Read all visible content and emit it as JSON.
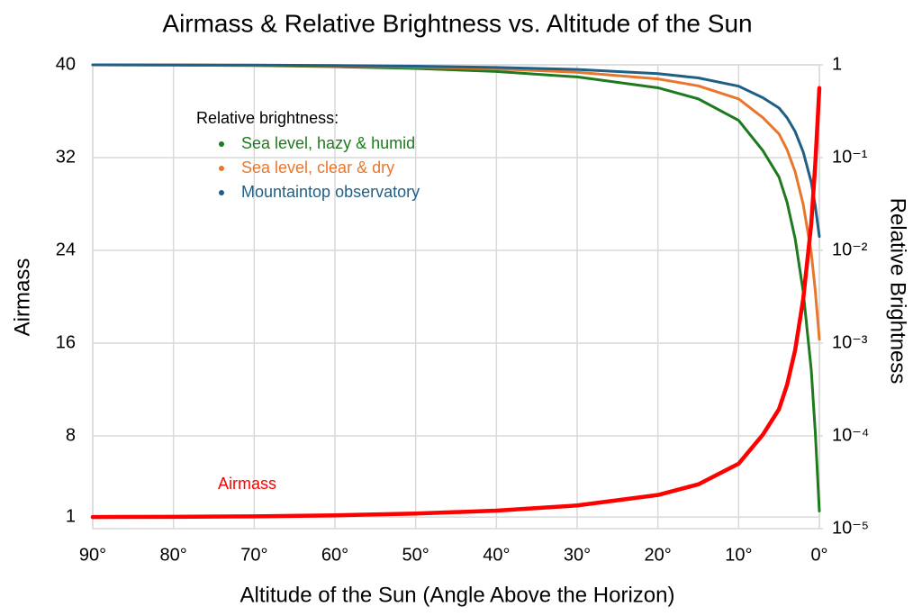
{
  "chart_data": {
    "type": "line",
    "title": "Airmass & Relative Brightness vs. Altitude of the Sun",
    "x_label": "Altitude of the Sun (Angle Above the Horizon)",
    "y_label": "Airmass",
    "y2_label": "Relative Brightness",
    "legend_title": "Relative brightness:",
    "x": [
      90,
      80,
      70,
      60,
      50,
      40,
      30,
      20,
      15,
      10,
      7,
      5,
      4,
      3,
      2,
      1,
      0.5,
      0
    ],
    "series": [
      {
        "name": "Sea level, hazy & humid",
        "color": "#1e7a1e",
        "axis": "y2",
        "values": [
          1,
          0.994,
          0.982,
          0.956,
          0.914,
          0.848,
          0.741,
          0.566,
          0.43,
          0.252,
          0.119,
          0.0618,
          0.033,
          0.0134,
          0.0036,
          0.00051,
          0.000108,
          1.55e-05
        ]
      },
      {
        "name": "Sea level, clear & dry",
        "color": "#e8772e",
        "axis": "y2",
        "values": [
          1,
          0.996,
          0.989,
          0.973,
          0.946,
          0.904,
          0.832,
          0.705,
          0.594,
          0.429,
          0.27,
          0.18,
          0.122,
          0.0705,
          0.0313,
          0.00946,
          0.00363,
          0.0011
        ]
      },
      {
        "name": "Mountaintop observatory",
        "color": "#1f5f86",
        "axis": "y2",
        "values": [
          1,
          0.998,
          0.993,
          0.983,
          0.966,
          0.939,
          0.891,
          0.804,
          0.723,
          0.589,
          0.442,
          0.343,
          0.269,
          0.191,
          0.115,
          0.0543,
          0.0299,
          0.0141
        ]
      },
      {
        "name": "Airmass",
        "color": "#ff0000",
        "values": [
          1,
          1.02,
          1.06,
          1.15,
          1.3,
          1.55,
          2.0,
          2.9,
          3.82,
          5.6,
          8.1,
          10.3,
          12.4,
          15.4,
          19.8,
          26.3,
          31.5,
          38
        ]
      }
    ],
    "xlim": [
      90,
      0
    ],
    "xticks": [
      {
        "value": 90,
        "label": "90°"
      },
      {
        "value": 80,
        "label": "80°"
      },
      {
        "value": 70,
        "label": "70°"
      },
      {
        "value": 60,
        "label": "60°"
      },
      {
        "value": 50,
        "label": "50°"
      },
      {
        "value": 40,
        "label": "40°"
      },
      {
        "value": 30,
        "label": "30°"
      },
      {
        "value": 20,
        "label": "20°"
      },
      {
        "value": 10,
        "label": "10°"
      },
      {
        "value": 0,
        "label": "0°"
      }
    ],
    "ylim": [
      0,
      40
    ],
    "yticks": [
      1,
      8,
      16,
      24,
      32,
      40
    ],
    "y2lim": [
      1e-05,
      1
    ],
    "y2scale": "log",
    "y2ticks": [
      {
        "value": 1,
        "label": "1"
      },
      {
        "value": 0.1,
        "label": "10⁻¹"
      },
      {
        "value": 0.01,
        "label": "10⁻²"
      },
      {
        "value": 0.001,
        "label": "10⁻³"
      },
      {
        "value": 0.0001,
        "label": "10⁻⁴"
      },
      {
        "value": 1e-05,
        "label": "10⁻⁵"
      }
    ],
    "grid": true
  }
}
